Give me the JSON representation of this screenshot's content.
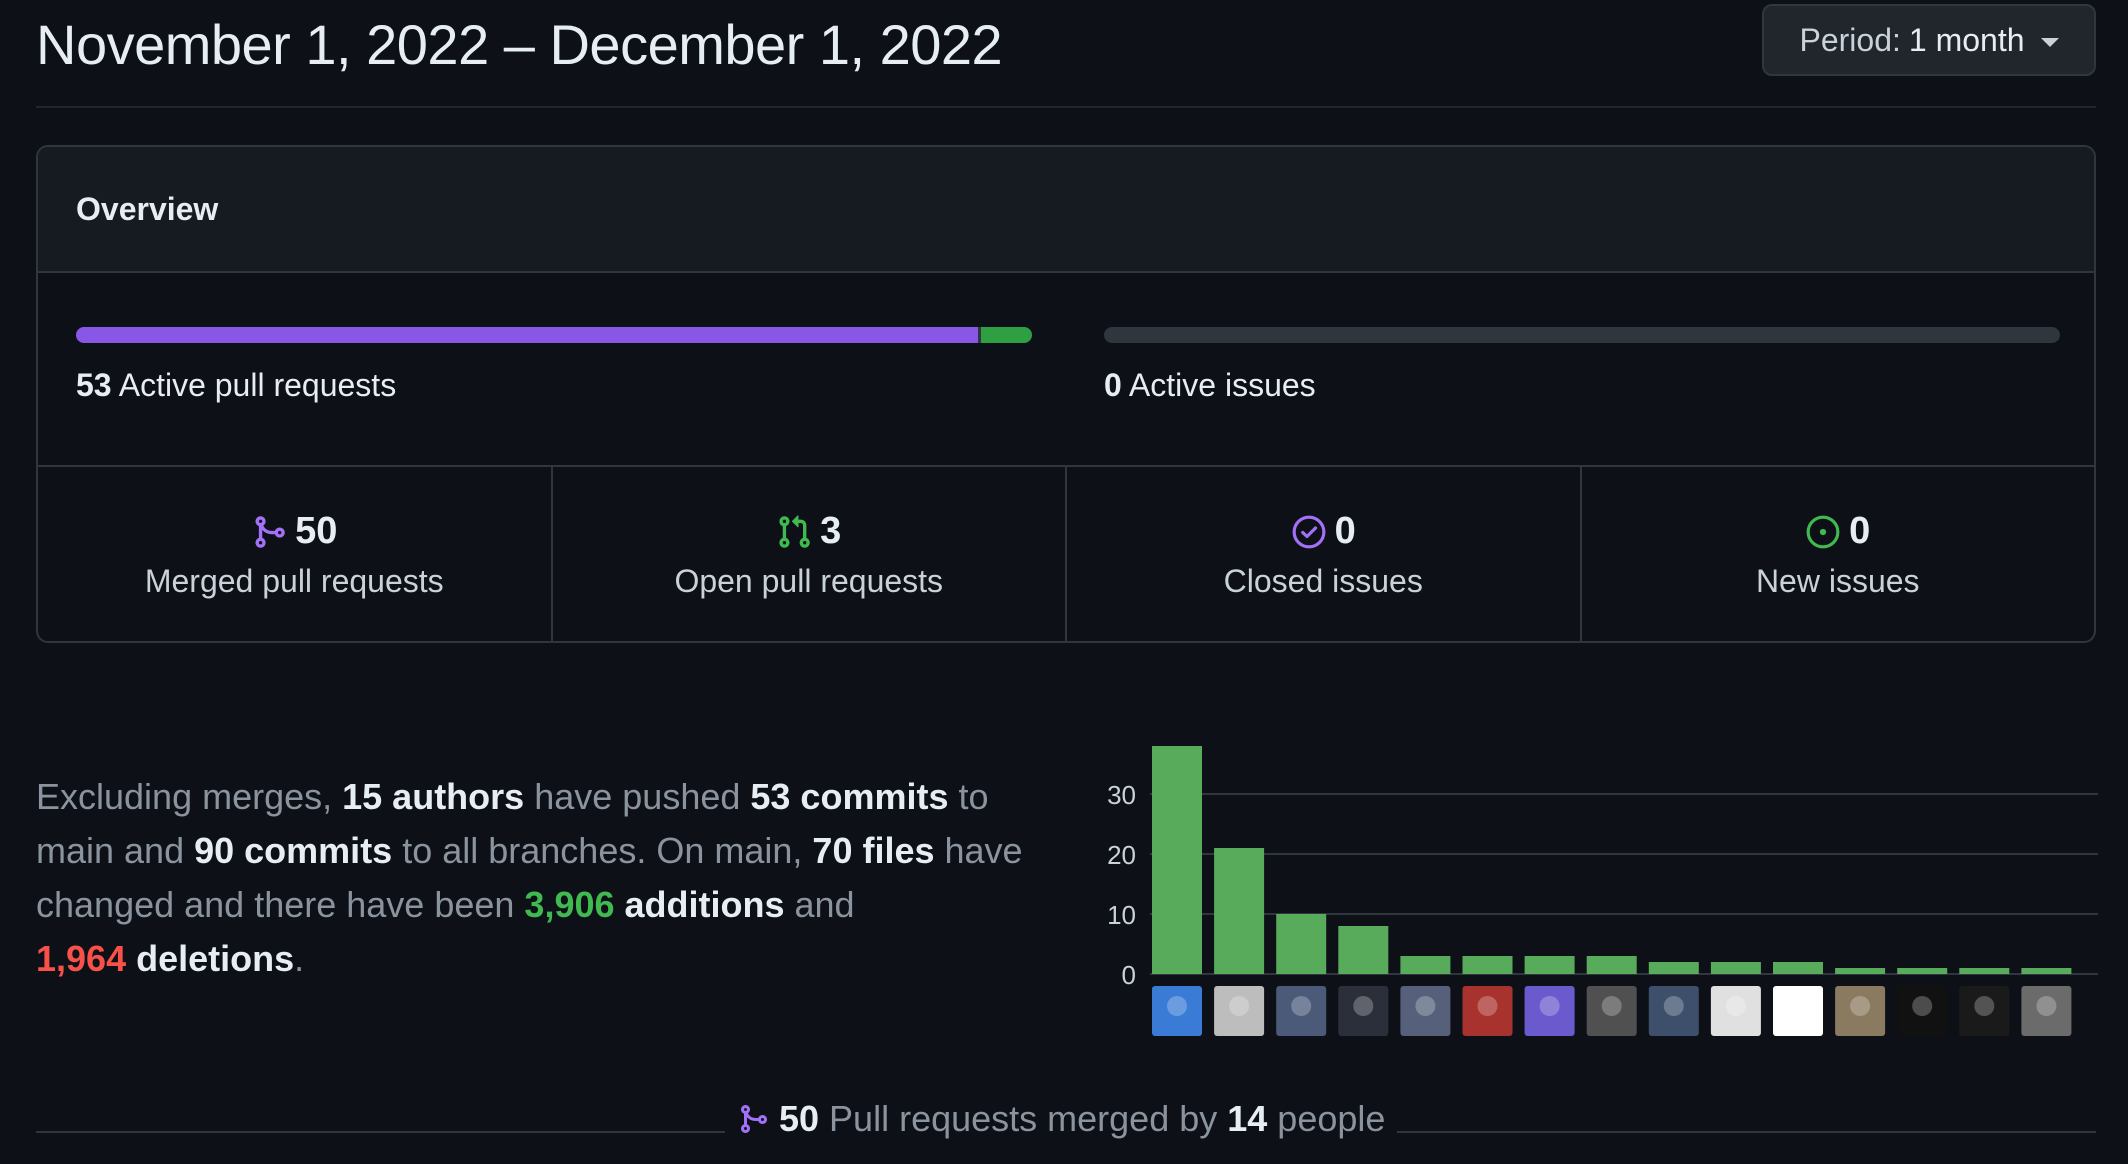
{
  "header": {
    "title": "November 1, 2022 – December 1, 2022",
    "period_prefix": "Period:",
    "period_value": "1 month"
  },
  "overview": {
    "title": "Overview",
    "prs": {
      "count": "53",
      "label": "Active pull requests",
      "merged_fraction": 0.943,
      "open_fraction": 0.057
    },
    "issues": {
      "count": "0",
      "label": "Active issues"
    },
    "stats": [
      {
        "icon": "merge-icon",
        "value": "50",
        "label": "Merged pull requests",
        "color": "#a371f7"
      },
      {
        "icon": "pull-request-icon",
        "value": "3",
        "label": "Open pull requests",
        "color": "#3fb950"
      },
      {
        "icon": "issue-closed-icon",
        "value": "0",
        "label": "Closed issues",
        "color": "#a371f7"
      },
      {
        "icon": "issue-opened-icon",
        "value": "0",
        "label": "New issues",
        "color": "#3fb950"
      }
    ]
  },
  "summary": {
    "p1": "Excluding merges, ",
    "authors": "15 authors",
    "p2": " have pushed ",
    "commits_main": "53 commits",
    "p3": " to main and ",
    "commits_all": "90 commits",
    "p4": " to all branches. On main, ",
    "files": "70 files",
    "p5": " have changed and there have been ",
    "additions_num": "3,906",
    "additions_word": " additions",
    "p6": " and ",
    "deletions_num": "1,964",
    "deletions_word": " deletions",
    "p7": "."
  },
  "chart_data": {
    "type": "bar",
    "categories": [
      "author-1",
      "author-2",
      "author-3",
      "author-4",
      "author-5",
      "author-6",
      "author-7",
      "author-8",
      "author-9",
      "author-10",
      "author-11",
      "author-12",
      "author-13",
      "author-14",
      "author-15"
    ],
    "values": [
      38,
      21,
      10,
      8,
      3,
      3,
      3,
      3,
      2,
      2,
      2,
      1,
      1,
      1,
      1
    ],
    "yticks": [
      "0",
      "10",
      "20",
      "30"
    ],
    "ylim": [
      0,
      40
    ],
    "bar_color": "#57ab5a",
    "avatar_colors": [
      "#3a7bd5",
      "#bdbdbd",
      "#4a5a78",
      "#2b2f3a",
      "#56607a",
      "#a8322d",
      "#6a5acd",
      "#505050",
      "#3d4f6b",
      "#e0e0e0",
      "#ffffff",
      "#8a7a60",
      "#111111",
      "#1a1a1a",
      "#6b6b6b"
    ]
  },
  "footer": {
    "count": "50",
    "text1": " Pull requests merged by ",
    "people": "14",
    "text2": " people"
  }
}
